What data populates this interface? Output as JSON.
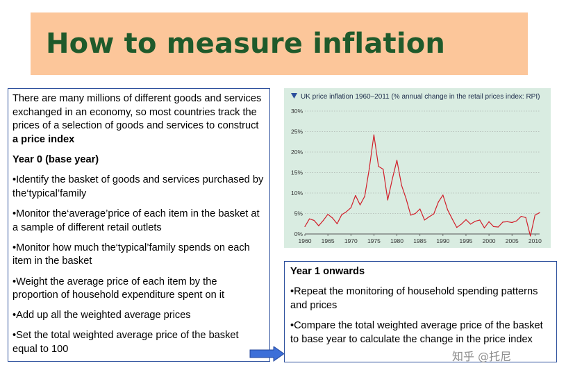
{
  "title": "How to measure inflation",
  "left_box": {
    "intro_part1": "There are many millions of different goods and services exchanged in an economy, so most countries track the prices of a selection of goods and services to construct",
    "intro_bold": "a price index",
    "year0_heading": "Year 0 (base year)",
    "bullets": [
      "•Identify the basket of goods and services purchased by the‘typical’family",
      "•Monitor the‘average’price of each item in the basket at a sample of different retail outlets",
      "•Monitor how much the‘typical’family spends on each item in the basket",
      "•Weight the average price of each item by the proportion of household expenditure spent on it",
      "•Add up all the weighted average prices",
      "•Set the total weighted average price of the basket equal to 100"
    ]
  },
  "right_box": {
    "heading": "Year 1 onwards",
    "bullets": [
      "•Repeat the monitoring of household spending patterns and prices",
      "•Compare the total weighted average price of the basket to base year to calculate the change in the price index"
    ]
  },
  "watermark": "知乎 @托尼",
  "colors": {
    "banner": "#fcc69a",
    "title_text": "#1f5a2b",
    "box_border": "#2c4f9c",
    "chart_bg": "#d9ece1",
    "series_line": "#d11f2a",
    "arrow": "#3d6fd8"
  },
  "icons": {
    "chart_marker": "triangle-down-icon",
    "pointer": "right-arrow-icon"
  },
  "chart_data": {
    "type": "line",
    "title": "UK price inflation 1960–2011 (% annual change in the retail prices index: RPI)",
    "xlabel": "",
    "ylabel": "",
    "xlim": [
      1960,
      2011
    ],
    "ylim": [
      0,
      30
    ],
    "grid": "horizontal",
    "x_ticks": [
      "1960",
      "1965",
      "1970",
      "1975",
      "1980",
      "1985",
      "1990",
      "1995",
      "2000",
      "2005",
      "2010"
    ],
    "y_ticks": [
      "0%",
      "5%",
      "10%",
      "15%",
      "20%",
      "25%",
      "30%"
    ],
    "series": [
      {
        "x": [
          1960,
          1961,
          1962,
          1963,
          1964,
          1965,
          1966,
          1967,
          1968,
          1969,
          1970,
          1971,
          1972,
          1973,
          1974,
          1975,
          1976,
          1977,
          1978,
          1979,
          1980,
          1981,
          1982,
          1983,
          1984,
          1985,
          1986,
          1987,
          1988,
          1989,
          1990,
          1991,
          1992,
          1993,
          1994,
          1995,
          1996,
          1997,
          1998,
          1999,
          2000,
          2001,
          2002,
          2003,
          2004,
          2005,
          2006,
          2007,
          2008,
          2009,
          2010,
          2011
        ],
        "values": [
          1.8,
          3.7,
          3.3,
          2.0,
          3.3,
          4.8,
          3.9,
          2.5,
          4.7,
          5.4,
          6.4,
          9.4,
          7.1,
          9.2,
          16.0,
          24.2,
          16.5,
          15.8,
          8.3,
          13.4,
          18.0,
          11.9,
          8.6,
          4.6,
          5.0,
          6.1,
          3.4,
          4.2,
          4.9,
          7.8,
          9.5,
          5.9,
          3.7,
          1.6,
          2.4,
          3.5,
          2.4,
          3.1,
          3.4,
          1.5,
          3.0,
          1.8,
          1.7,
          2.9,
          3.0,
          2.8,
          3.2,
          4.3,
          4.0,
          -0.5,
          4.6,
          5.2
        ]
      }
    ]
  }
}
